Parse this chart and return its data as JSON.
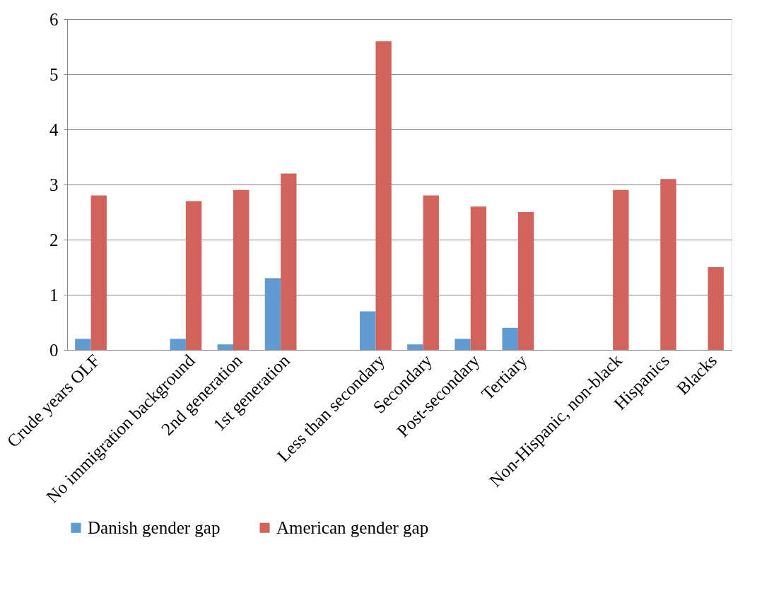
{
  "chart_data": {
    "type": "bar",
    "categories": [
      "Crude years OLF",
      null,
      "No immigration background",
      "2nd generation",
      "1st generation",
      null,
      "Less than secondary",
      "Secondary",
      "Post-secondary",
      "Tertiary",
      null,
      "Non-Hispanic, non-black",
      "Hispanics",
      "Blacks"
    ],
    "series": [
      {
        "name": "Danish gender gap",
        "color": "#6199d1",
        "values": [
          0.2,
          null,
          0.2,
          0.1,
          1.3,
          null,
          0.7,
          0.1,
          0.2,
          0.4,
          null,
          null,
          null,
          null
        ]
      },
      {
        "name": "American gender gap",
        "color": "#d0645c",
        "values": [
          2.8,
          null,
          2.7,
          2.9,
          3.2,
          null,
          5.6,
          2.8,
          2.6,
          2.5,
          null,
          2.9,
          3.1,
          1.5
        ]
      }
    ],
    "ylim": [
      0,
      6
    ],
    "yticks": [
      0,
      1,
      2,
      3,
      4,
      5,
      6
    ],
    "grid": "y",
    "legend": "bottom"
  }
}
